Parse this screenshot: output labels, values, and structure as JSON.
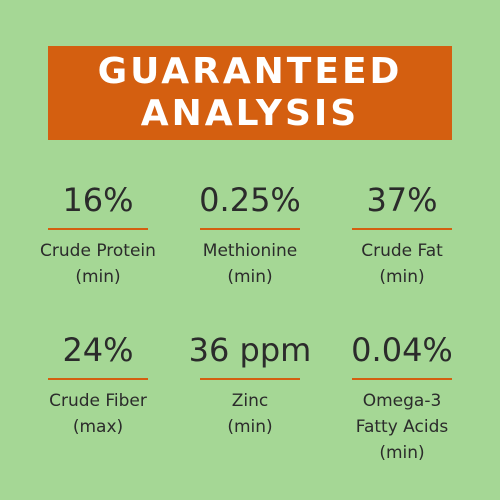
{
  "header": {
    "title": "GUARANTEED ANALYSIS"
  },
  "items": [
    {
      "value": "16%",
      "label": "Crude Protein",
      "qualifier": "(min)"
    },
    {
      "value": "0.25%",
      "label": "Methionine",
      "qualifier": "(min)"
    },
    {
      "value": "37%",
      "label": "Crude Fat",
      "qualifier": "(min)"
    },
    {
      "value": "24%",
      "label": "Crude Fiber",
      "qualifier": "(max)"
    },
    {
      "value": "36 ppm",
      "label": "Zinc",
      "qualifier": "(min)"
    },
    {
      "value": "0.04%",
      "label": "Omega-3 Fatty Acids",
      "qualifier": "(min)"
    }
  ]
}
